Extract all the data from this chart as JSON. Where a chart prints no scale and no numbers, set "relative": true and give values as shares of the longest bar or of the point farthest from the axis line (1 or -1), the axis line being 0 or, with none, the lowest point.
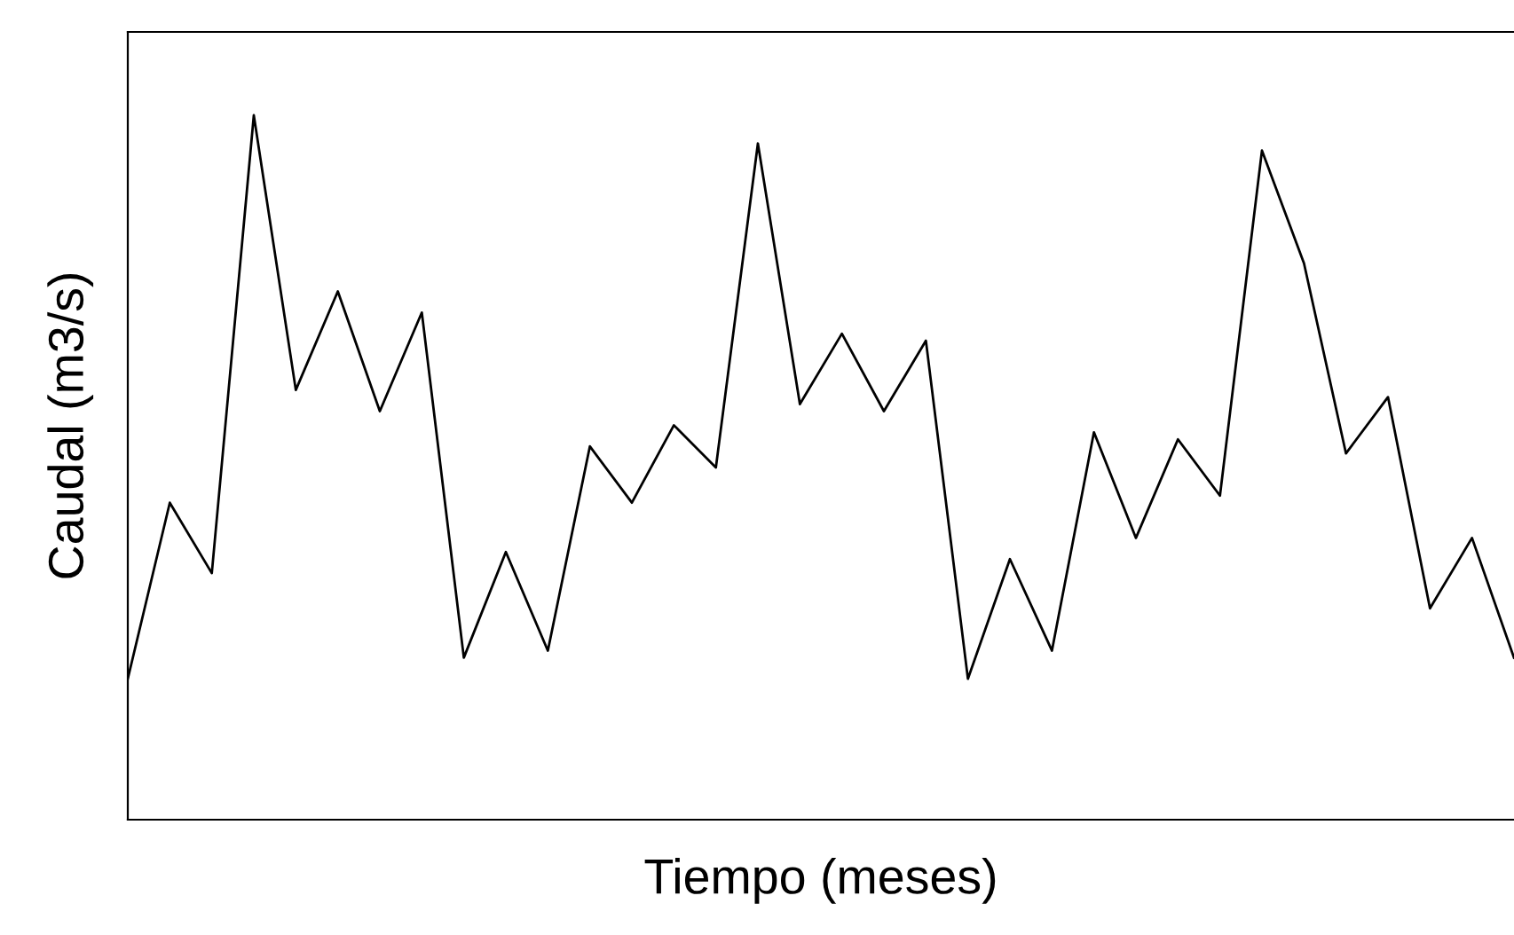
{
  "chart_data": {
    "type": "line",
    "relative": true,
    "xlabel": "Tiempo (meses)",
    "ylabel": "Caudal (m3/s)",
    "marker": "none",
    "line_style": "solid",
    "categories": [
      null,
      null,
      null,
      null,
      null,
      null,
      null,
      null,
      null,
      null,
      null,
      null,
      null,
      null,
      null,
      null,
      null,
      null,
      null,
      null,
      null,
      null,
      null,
      null,
      null,
      null,
      null,
      null,
      null,
      null,
      null,
      null,
      null,
      null
    ],
    "series": [
      {
        "color": "#000000",
        "values": [
          0.2,
          0.45,
          0.35,
          1.0,
          0.61,
          0.75,
          0.58,
          0.72,
          0.23,
          0.38,
          0.24,
          0.53,
          0.45,
          0.56,
          0.5,
          0.96,
          0.59,
          0.69,
          0.58,
          0.68,
          0.2,
          0.37,
          0.24,
          0.55,
          0.4,
          0.54,
          0.46,
          0.95,
          0.79,
          0.52,
          0.6,
          0.3,
          0.4,
          0.23
        ]
      }
    ]
  }
}
